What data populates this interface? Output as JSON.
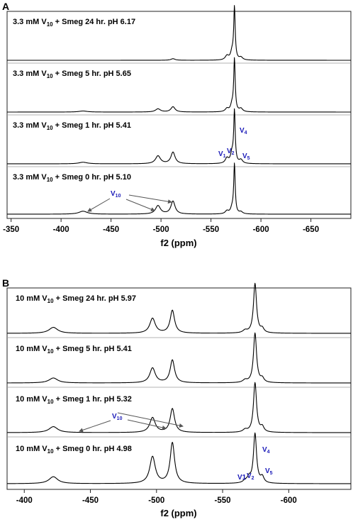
{
  "colors": {
    "annotation": "#1a1ab8",
    "trace": "#000000",
    "arrow": "#555555"
  },
  "chart_data": [
    {
      "panel": "A",
      "type": "line",
      "xlabel": "f2 (ppm)",
      "xlim": [
        -346,
        -690
      ],
      "x_ticks": [
        -350,
        -400,
        -450,
        -500,
        -550,
        -600,
        -650
      ],
      "tick_labels": [
        "-350",
        "-400",
        "-450",
        "-500",
        "-550",
        "-600",
        "-650"
      ],
      "grid": false,
      "series": [
        {
          "name": "3.3 mM V10 + Smeg 24 hr. pH 6.17",
          "label_main": "3.3 mM V",
          "label_sub": "10",
          "label_rest": " + Smeg 24 hr. pH 6.17",
          "peaks": [
            {
              "ppm": -512,
              "height": 0.03,
              "width": 2.5
            },
            {
              "ppm": -566,
              "height": 0.08,
              "width": 2
            },
            {
              "ppm": -571,
              "height": 0.14,
              "width": 1.6
            },
            {
              "ppm": -573.5,
              "height": 1.0,
              "width": 0.9
            },
            {
              "ppm": -580,
              "height": 0.05,
              "width": 2
            }
          ]
        },
        {
          "name": "3.3 mM V10 + Smeg 5 hr. pH 5.65",
          "label_main": "3.3 mM V",
          "label_sub": "10",
          "label_rest": " + Smeg 5 hr. pH 5.65",
          "peaks": [
            {
              "ppm": -422,
              "height": 0.02,
              "width": 5
            },
            {
              "ppm": -497,
              "height": 0.06,
              "width": 3
            },
            {
              "ppm": -512,
              "height": 0.1,
              "width": 2.5
            },
            {
              "ppm": -566,
              "height": 0.06,
              "width": 2
            },
            {
              "ppm": -571,
              "height": 0.12,
              "width": 1.6
            },
            {
              "ppm": -573.5,
              "height": 1.0,
              "width": 0.9
            },
            {
              "ppm": -580,
              "height": 0.06,
              "width": 2
            }
          ]
        },
        {
          "name": "3.3 mM V10 + Smeg 1 hr. pH 5.41",
          "label_main": "3.3 mM V",
          "label_sub": "10",
          "label_rest": " + Smeg 1 hr. pH 5.41",
          "peaks": [
            {
              "ppm": -422,
              "height": 0.03,
              "width": 5
            },
            {
              "ppm": -497,
              "height": 0.15,
              "width": 3
            },
            {
              "ppm": -512,
              "height": 0.22,
              "width": 2.5
            },
            {
              "ppm": -566,
              "height": 0.1,
              "width": 2
            },
            {
              "ppm": -571,
              "height": 0.18,
              "width": 1.6
            },
            {
              "ppm": -573.5,
              "height": 1.0,
              "width": 0.9
            },
            {
              "ppm": -580,
              "height": 0.07,
              "width": 2
            }
          ]
        },
        {
          "name": "3.3 mM V10 + Smeg 0 hr. pH 5.10",
          "label_main": "3.3 mM V",
          "label_sub": "10",
          "label_rest": " + Smeg 0 hr. pH 5.10",
          "peaks": [
            {
              "ppm": -422,
              "height": 0.06,
              "width": 5
            },
            {
              "ppm": -497,
              "height": 0.17,
              "width": 3
            },
            {
              "ppm": -512,
              "height": 0.26,
              "width": 2.5
            },
            {
              "ppm": -566,
              "height": 0.06,
              "width": 2
            },
            {
              "ppm": -571,
              "height": 0.1,
              "width": 1.6
            },
            {
              "ppm": -573.5,
              "height": 1.0,
              "width": 0.9
            },
            {
              "ppm": -580,
              "height": 0.04,
              "width": 2
            }
          ]
        }
      ],
      "annotations": [
        {
          "text": "V",
          "sub": "10",
          "ppm": -510,
          "note": "V10 label with arrows"
        },
        {
          "text": "V",
          "sub": "4",
          "ppm": -575
        },
        {
          "text": "V",
          "sub": "1",
          "ppm": -562
        },
        {
          "text": "V",
          "sub": "2",
          "ppm": -568
        },
        {
          "text": "V",
          "sub": "5",
          "ppm": -580
        }
      ]
    },
    {
      "panel": "B",
      "type": "line",
      "xlabel": "f2 (ppm)",
      "xlim": [
        -387,
        -647
      ],
      "x_ticks": [
        -400,
        -450,
        -500,
        -550,
        -600
      ],
      "tick_labels": [
        "-400",
        "-450",
        "-500",
        "-550",
        "-600"
      ],
      "grid": false,
      "series": [
        {
          "name": "10 mM V10 + Smeg 24 hr. pH 5.97",
          "label_main": "10 mM V",
          "label_sub": "10",
          "label_rest": " + Smeg 24 hr. pH 5.97",
          "peaks": [
            {
              "ppm": -422,
              "height": 0.12,
              "width": 4
            },
            {
              "ppm": -497,
              "height": 0.3,
              "width": 2.5
            },
            {
              "ppm": -512,
              "height": 0.46,
              "width": 2
            },
            {
              "ppm": -567,
              "height": 0.05,
              "width": 2
            },
            {
              "ppm": -574.5,
              "height": 1.0,
              "width": 1.4
            },
            {
              "ppm": -580,
              "height": 0.08,
              "width": 1.5
            }
          ]
        },
        {
          "name": "10 mM V10 + Smeg 5 hr. pH 5.41",
          "label_main": "10 mM V",
          "label_sub": "10",
          "label_rest": " + Smeg 5 hr. pH 5.41",
          "peaks": [
            {
              "ppm": -422,
              "height": 0.1,
              "width": 4
            },
            {
              "ppm": -497,
              "height": 0.3,
              "width": 2.5
            },
            {
              "ppm": -512,
              "height": 0.46,
              "width": 2
            },
            {
              "ppm": -567,
              "height": 0.05,
              "width": 2
            },
            {
              "ppm": -574.5,
              "height": 1.0,
              "width": 1.4
            },
            {
              "ppm": -580,
              "height": 0.08,
              "width": 1.5
            }
          ]
        },
        {
          "name": "10 mM V10 + Smeg 1 hr. pH 5.32",
          "label_main": "10 mM V",
          "label_sub": "10",
          "label_rest": " + Smeg 1 hr. pH 5.32",
          "peaks": [
            {
              "ppm": -422,
              "height": 0.12,
              "width": 4
            },
            {
              "ppm": -497,
              "height": 0.3,
              "width": 2.5
            },
            {
              "ppm": -512,
              "height": 0.48,
              "width": 2
            },
            {
              "ppm": -567,
              "height": 0.05,
              "width": 2
            },
            {
              "ppm": -574.5,
              "height": 1.0,
              "width": 1.4
            },
            {
              "ppm": -580,
              "height": 0.1,
              "width": 1.5
            }
          ]
        },
        {
          "name": "10 mM V10 + Smeg 0 hr. pH 4.98",
          "label_main": "10 mM V",
          "label_sub": "10",
          "label_rest": " + Smeg 0 hr. pH 4.98",
          "peaks": [
            {
              "ppm": -422,
              "height": 0.14,
              "width": 4
            },
            {
              "ppm": -497,
              "height": 0.54,
              "width": 2.5
            },
            {
              "ppm": -512,
              "height": 0.82,
              "width": 2
            },
            {
              "ppm": -567,
              "height": 0.04,
              "width": 2
            },
            {
              "ppm": -570,
              "height": 0.1,
              "width": 1.6
            },
            {
              "ppm": -574.5,
              "height": 1.0,
              "width": 1.4
            },
            {
              "ppm": -580,
              "height": 0.12,
              "width": 1.5
            }
          ]
        }
      ],
      "annotations": [
        {
          "text": "V",
          "sub": "10",
          "ppm": -460
        },
        {
          "text": "V",
          "sub": "4",
          "ppm": -578
        },
        {
          "text": "V1",
          "sub": "",
          "ppm": -555
        },
        {
          "text": "V",
          "sub": "2",
          "ppm": -568
        },
        {
          "text": "V",
          "sub": "5",
          "ppm": -581
        }
      ]
    }
  ]
}
